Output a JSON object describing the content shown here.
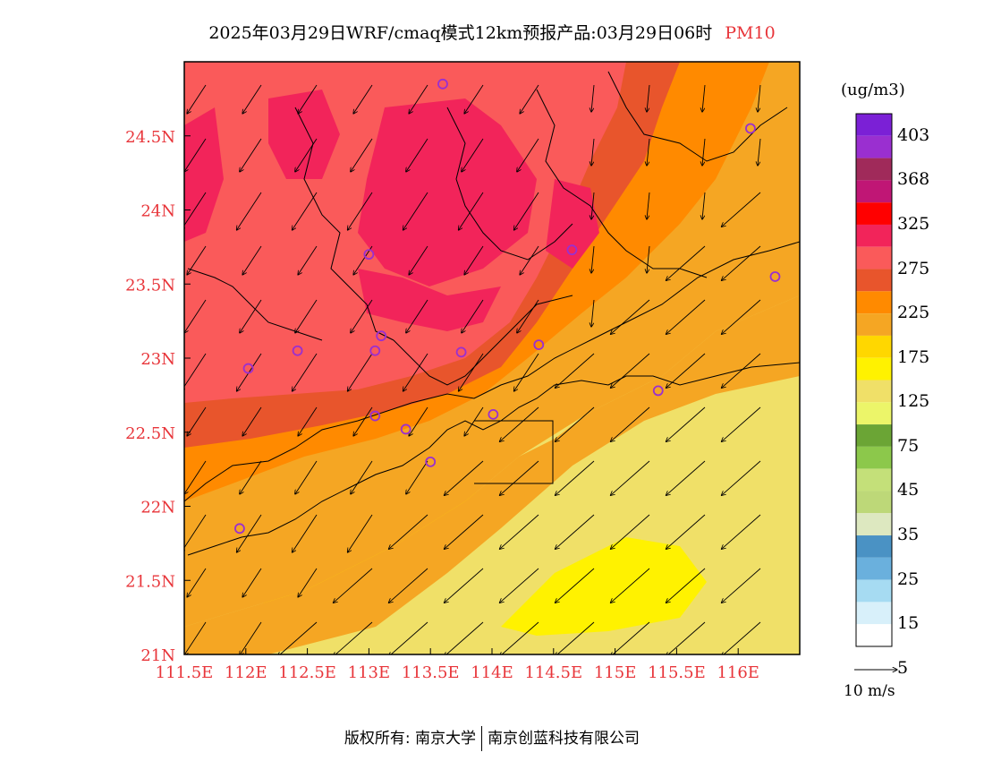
{
  "title": {
    "text": "2025年03月29日WRF/cmaq模式12km预报产品:03月29日06时",
    "parameter": "PM10"
  },
  "axes": {
    "lon_ticks": [
      "111.5E",
      "112E",
      "112.5E",
      "113E",
      "113.5E",
      "114E",
      "114.5E",
      "115E",
      "115.5E",
      "116E"
    ],
    "lon_values": [
      111.5,
      112,
      112.5,
      113,
      113.5,
      114,
      114.5,
      115,
      115.5,
      116
    ],
    "lat_ticks": [
      "21N",
      "21.5N",
      "22N",
      "22.5N",
      "23N",
      "23.5N",
      "24N",
      "24.5N"
    ],
    "lat_values": [
      21,
      21.5,
      22,
      22.5,
      23,
      23.5,
      24,
      24.5
    ],
    "lon_range": [
      111.5,
      116.5
    ],
    "lat_range": [
      21.0,
      25.0
    ],
    "tick_color": "#e8353a"
  },
  "colorbar": {
    "title": "(ug/m3)",
    "labels": [
      "403",
      "368",
      "325",
      "275",
      "225",
      "175",
      "125",
      "75",
      "45",
      "35",
      "25",
      "15",
      "5"
    ],
    "colors_top_to_bottom": [
      "#7b20d6",
      "#9a2fd0",
      "#a02a5a",
      "#c01675",
      "#ff0000",
      "#f2245a",
      "#fa5a5a",
      "#e8552c",
      "#ff8a00",
      "#f5a623",
      "#ffd700",
      "#fff200",
      "#f0e068",
      "#ecf569",
      "#6ba535",
      "#8cc84b",
      "#c4e079",
      "#bdd878",
      "#dde8c0",
      "#4a92c4",
      "#6ab0dd",
      "#a6dbf2",
      "#d8f0fa",
      "#ffffff"
    ]
  },
  "wind_reference": {
    "label": "10 m/s"
  },
  "stations": [
    {
      "lon": 113.6,
      "lat": 24.85
    },
    {
      "lon": 116.1,
      "lat": 24.55
    },
    {
      "lon": 113.0,
      "lat": 23.7
    },
    {
      "lon": 114.65,
      "lat": 23.73
    },
    {
      "lon": 116.3,
      "lat": 23.55
    },
    {
      "lon": 112.42,
      "lat": 23.05
    },
    {
      "lon": 112.02,
      "lat": 22.93
    },
    {
      "lon": 113.1,
      "lat": 23.15
    },
    {
      "lon": 113.05,
      "lat": 23.05
    },
    {
      "lon": 113.75,
      "lat": 23.04
    },
    {
      "lon": 114.38,
      "lat": 23.09
    },
    {
      "lon": 113.05,
      "lat": 22.61
    },
    {
      "lon": 113.3,
      "lat": 22.52
    },
    {
      "lon": 114.01,
      "lat": 22.62
    },
    {
      "lon": 113.5,
      "lat": 22.3
    },
    {
      "lon": 115.35,
      "lat": 22.78
    },
    {
      "lon": 111.95,
      "lat": 21.85
    }
  ],
  "footer": {
    "copyright": "版权所有: 南京大学",
    "company": "南京创蓝科技有限公司"
  }
}
